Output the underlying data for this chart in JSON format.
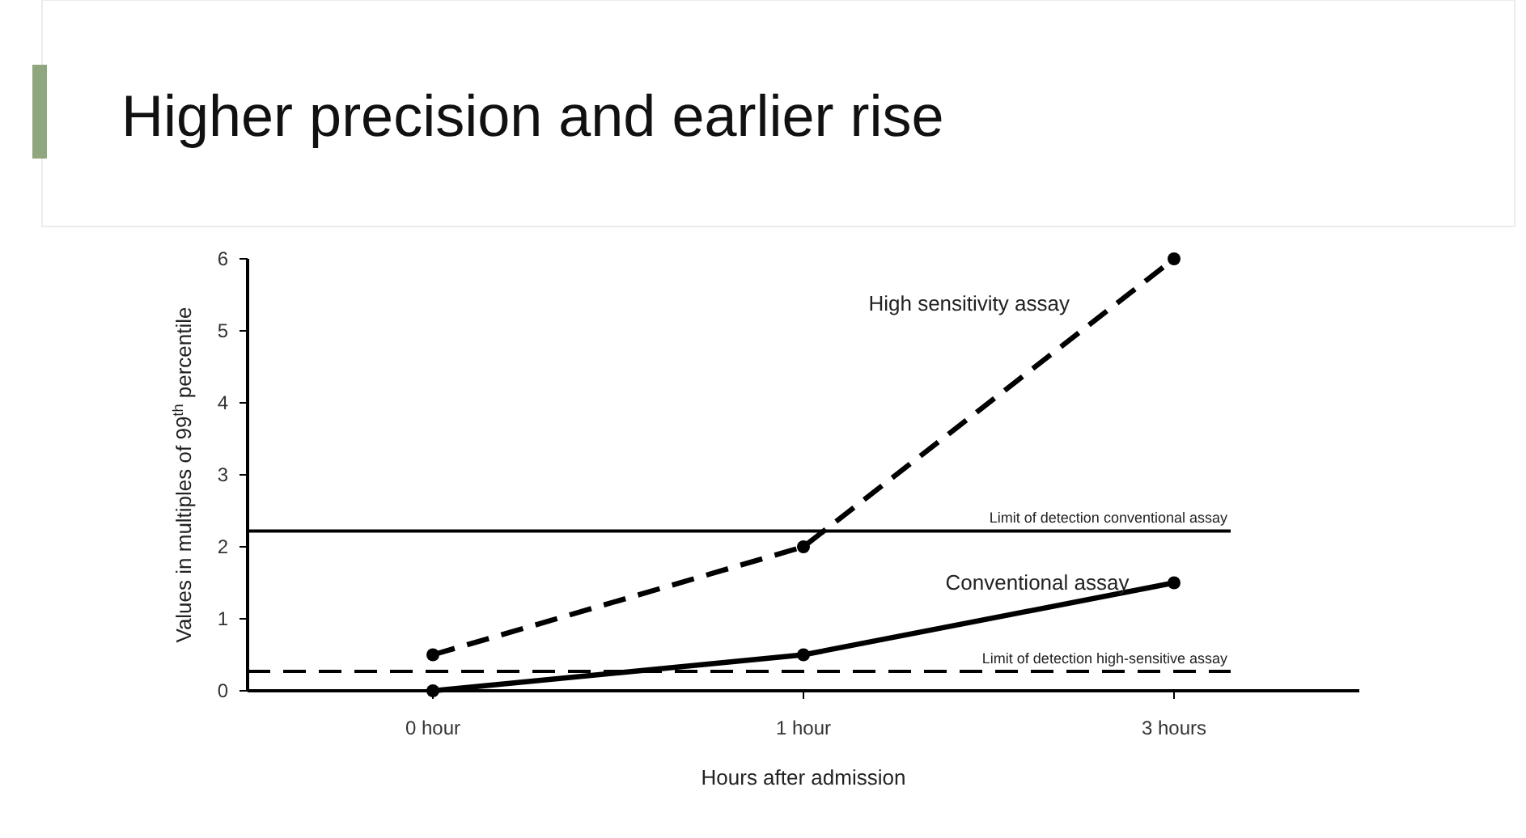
{
  "chart_data": {
    "type": "line",
    "title": "Higher precision and earlier rise",
    "xlabel": "Hours after admission",
    "ylabel": "Values in multiples of 99$^{th}$ percentile",
    "categories": [
      "0 hour",
      "1 hour",
      "3 hours"
    ],
    "series": [
      {
        "name": "High sensitivity assay",
        "color": "#000000",
        "values": [
          0.5,
          2,
          6
        ],
        "line_style": "dashed"
      },
      {
        "name": "Conventional assay",
        "color": "#000000",
        "values": [
          0,
          0.5,
          1.5
        ],
        "line_style": "solid"
      }
    ],
    "ylim": [
      0,
      6
    ],
    "yticks": [
      0,
      1,
      2,
      3,
      4,
      5,
      6
    ],
    "grid": false,
    "legend": false,
    "marker": "circle",
    "ref_lines": [
      {
        "axis": "y",
        "value": 2.22,
        "label": "Limit of detection conventional assay",
        "line_style": "solid",
        "color": "#000000"
      },
      {
        "axis": "y",
        "value": 0.27,
        "label": "Limit of detection high-sensitive assay",
        "line_style": "dashed",
        "color": "#000000"
      }
    ]
  }
}
